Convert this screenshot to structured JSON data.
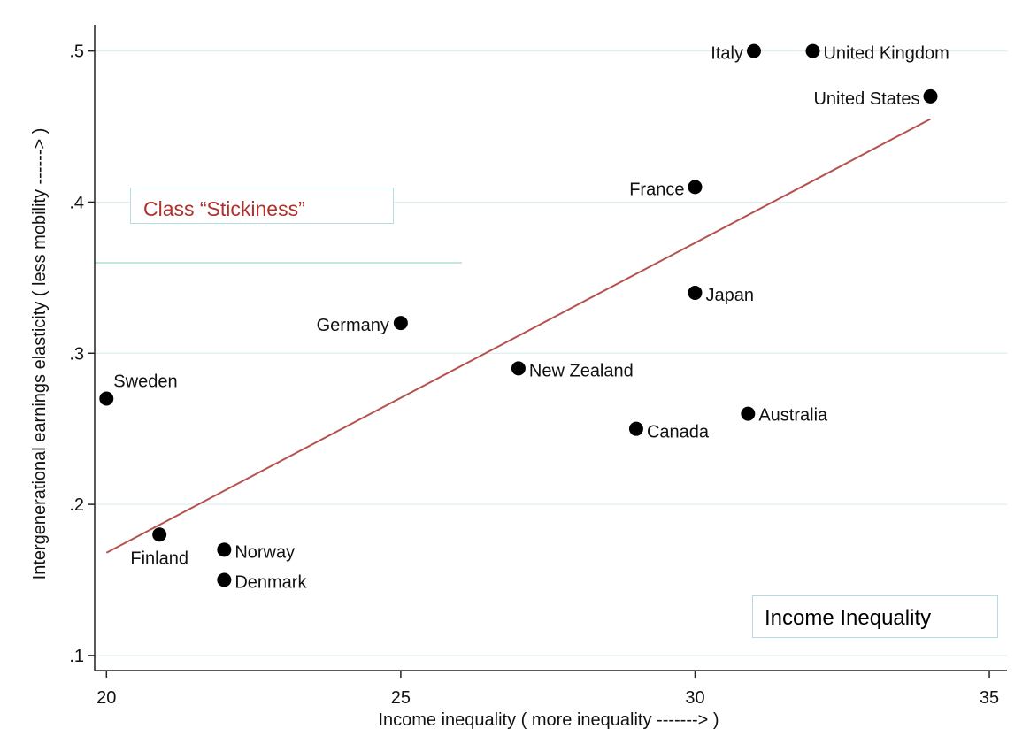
{
  "chart_data": {
    "type": "scatter",
    "xlabel": "Income inequality ( more inequality -------> )",
    "ylabel": "Intergenerational earnings elasticity ( less mobility ------> )",
    "xlim": [
      19.8,
      35.3
    ],
    "ylim": [
      0.09,
      0.515
    ],
    "xticks": [
      20,
      25,
      30,
      35
    ],
    "xtick_labels": [
      "20",
      "25",
      "30",
      "35"
    ],
    "yticks": [
      0.1,
      0.2,
      0.3,
      0.4,
      0.5
    ],
    "ytick_labels": [
      ".1",
      ".2",
      ".3",
      ".4",
      ".5"
    ],
    "grid": "horizontal",
    "points": [
      {
        "label": "Italy",
        "x": 31,
        "y": 0.5
      },
      {
        "label": "United Kingdom",
        "x": 32,
        "y": 0.5
      },
      {
        "label": "United States",
        "x": 34,
        "y": 0.47
      },
      {
        "label": "France",
        "x": 30,
        "y": 0.41
      },
      {
        "label": "Japan",
        "x": 30,
        "y": 0.34
      },
      {
        "label": "Germany",
        "x": 25,
        "y": 0.32
      },
      {
        "label": "New Zealand",
        "x": 27,
        "y": 0.29
      },
      {
        "label": "Sweden",
        "x": 20,
        "y": 0.27
      },
      {
        "label": "Australia",
        "x": 30.9,
        "y": 0.26
      },
      {
        "label": "Canada",
        "x": 29,
        "y": 0.25
      },
      {
        "label": "Finland",
        "x": 20.9,
        "y": 0.18
      },
      {
        "label": "Norway",
        "x": 22,
        "y": 0.17
      },
      {
        "label": "Denmark",
        "x": 22,
        "y": 0.15
      }
    ],
    "fit_line": {
      "x": [
        20,
        34
      ],
      "y": [
        0.168,
        0.455
      ],
      "color": "#b5524e"
    },
    "point_color": "#000000"
  },
  "annotations": {
    "stickiness": "Class  “Stickiness”",
    "income_inequality": "Income Inequality"
  }
}
